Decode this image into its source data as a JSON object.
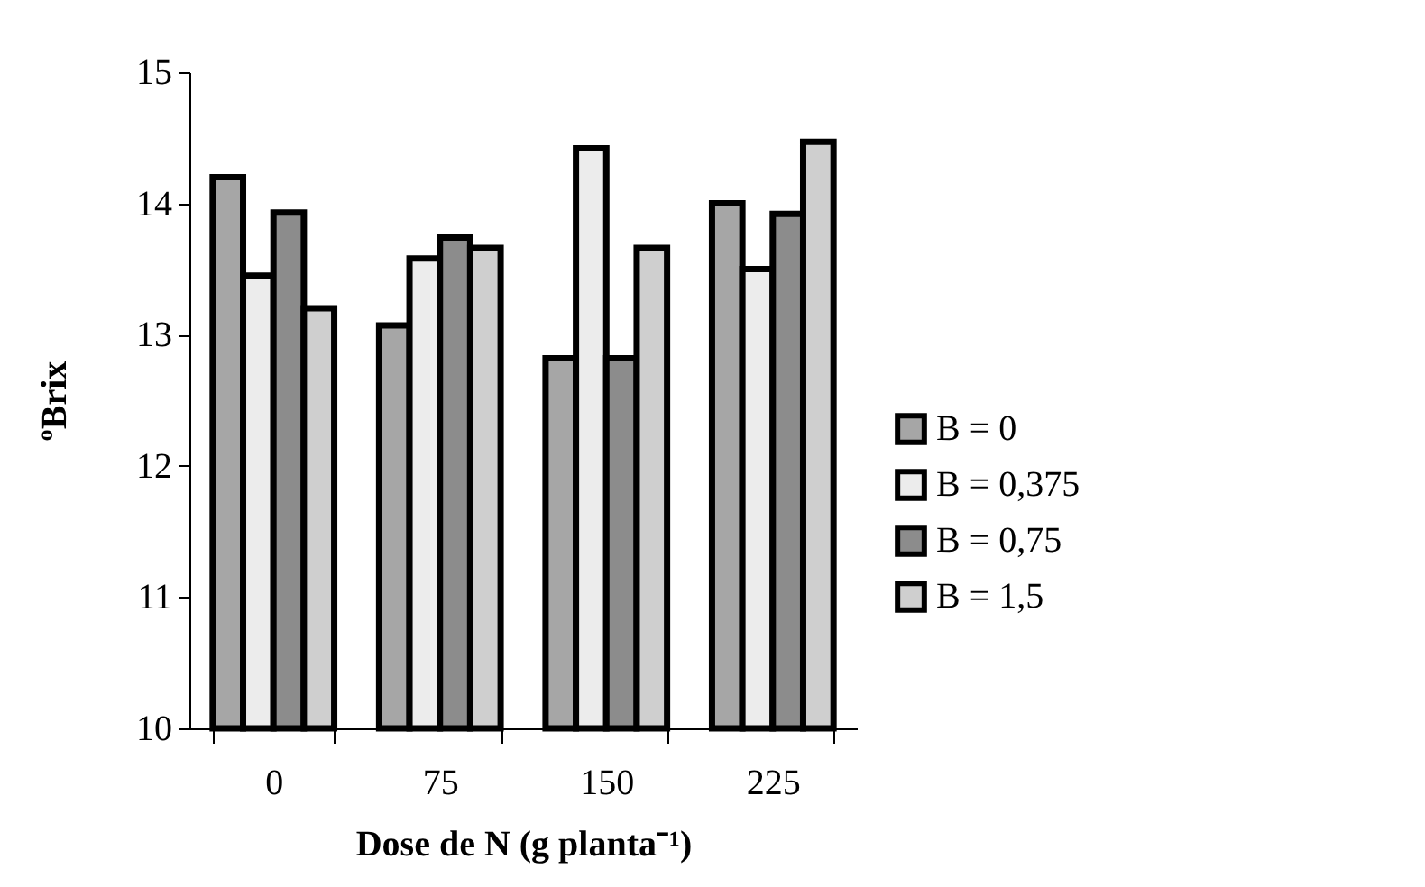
{
  "chart_data": {
    "type": "bar",
    "xlabel": "Dose de N (g planta⁻¹)",
    "ylabel": "ºBrix",
    "categories": [
      "0",
      "75",
      "150",
      "225"
    ],
    "series": [
      {
        "name": "B = 0",
        "color": "#a6a6a6",
        "values": [
          14.2,
          13.07,
          12.82,
          14.0
        ]
      },
      {
        "name": "B = 0,375",
        "color": "#ececec",
        "values": [
          13.45,
          13.58,
          14.42,
          13.5
        ]
      },
      {
        "name": "B = 0,75",
        "color": "#8c8c8c",
        "values": [
          13.93,
          13.74,
          12.82,
          13.92
        ]
      },
      {
        "name": "B = 1,5",
        "color": "#cfcfcf",
        "values": [
          13.2,
          13.66,
          13.66,
          14.47
        ]
      }
    ],
    "ylim": [
      10,
      15
    ],
    "yticks": [
      10,
      11,
      12,
      13,
      14,
      15
    ],
    "grid": false,
    "legend": "right"
  }
}
